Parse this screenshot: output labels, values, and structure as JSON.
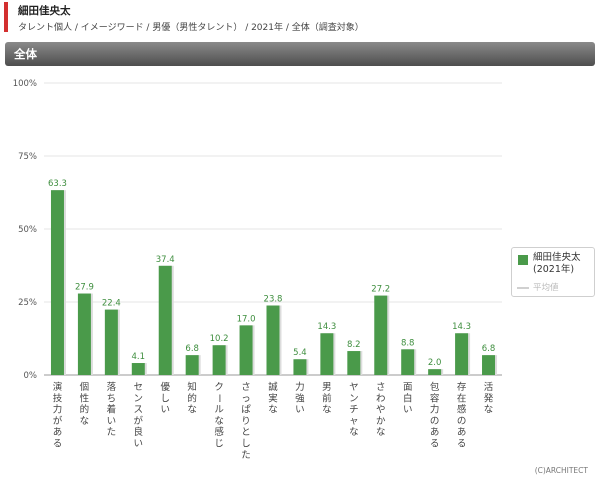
{
  "header": {
    "title": "細田佳央太",
    "subtitle": "タレント個人 / イメージワード / 男優（男性タレント） / 2021年 / 全体（調査対象）",
    "section": "全体"
  },
  "legend": {
    "series_name": "細田佳央太\n(2021年)",
    "average_label": "平均値"
  },
  "copyright": "(C)ARCHITECT",
  "colors": {
    "bar": "#4a9a4a",
    "grid": "#e6e6e6",
    "axis": "#9a9a9a",
    "section": "#5a5a5a",
    "accent": "#d32f2f"
  },
  "chart_data": {
    "type": "bar",
    "categories": [
      "演技力がある",
      "個性的な",
      "落ち着いた",
      "センスが良い",
      "優しい",
      "知的な",
      "クールな感じ",
      "さっぱりとした",
      "誠実な",
      "力強い",
      "男前な",
      "ヤンチャな",
      "さわやかな",
      "面白い",
      "包容力のある",
      "存在感のある",
      "活発な"
    ],
    "series": [
      {
        "name": "細田佳央太 (2021年)",
        "values": [
          63.3,
          27.9,
          22.4,
          4.1,
          37.4,
          6.8,
          10.2,
          17.0,
          23.8,
          5.4,
          14.3,
          8.2,
          27.2,
          8.8,
          2.0,
          14.3,
          6.8
        ]
      }
    ],
    "value_labels": [
      "63.3",
      "27.9",
      "22.4",
      "4.1",
      "37.4",
      "6.8",
      "10.2",
      "17.0",
      "23.8",
      "5.4",
      "14.3",
      "8.2",
      "27.2",
      "8.8",
      "2.0",
      "14.3",
      "6.8"
    ],
    "yticks": [
      0,
      25,
      50,
      75,
      100
    ],
    "ytick_labels": [
      "0%",
      "25%",
      "50%",
      "75%",
      "100%"
    ],
    "ylim": [
      0,
      100
    ],
    "grid": true,
    "legend_position": "right"
  }
}
